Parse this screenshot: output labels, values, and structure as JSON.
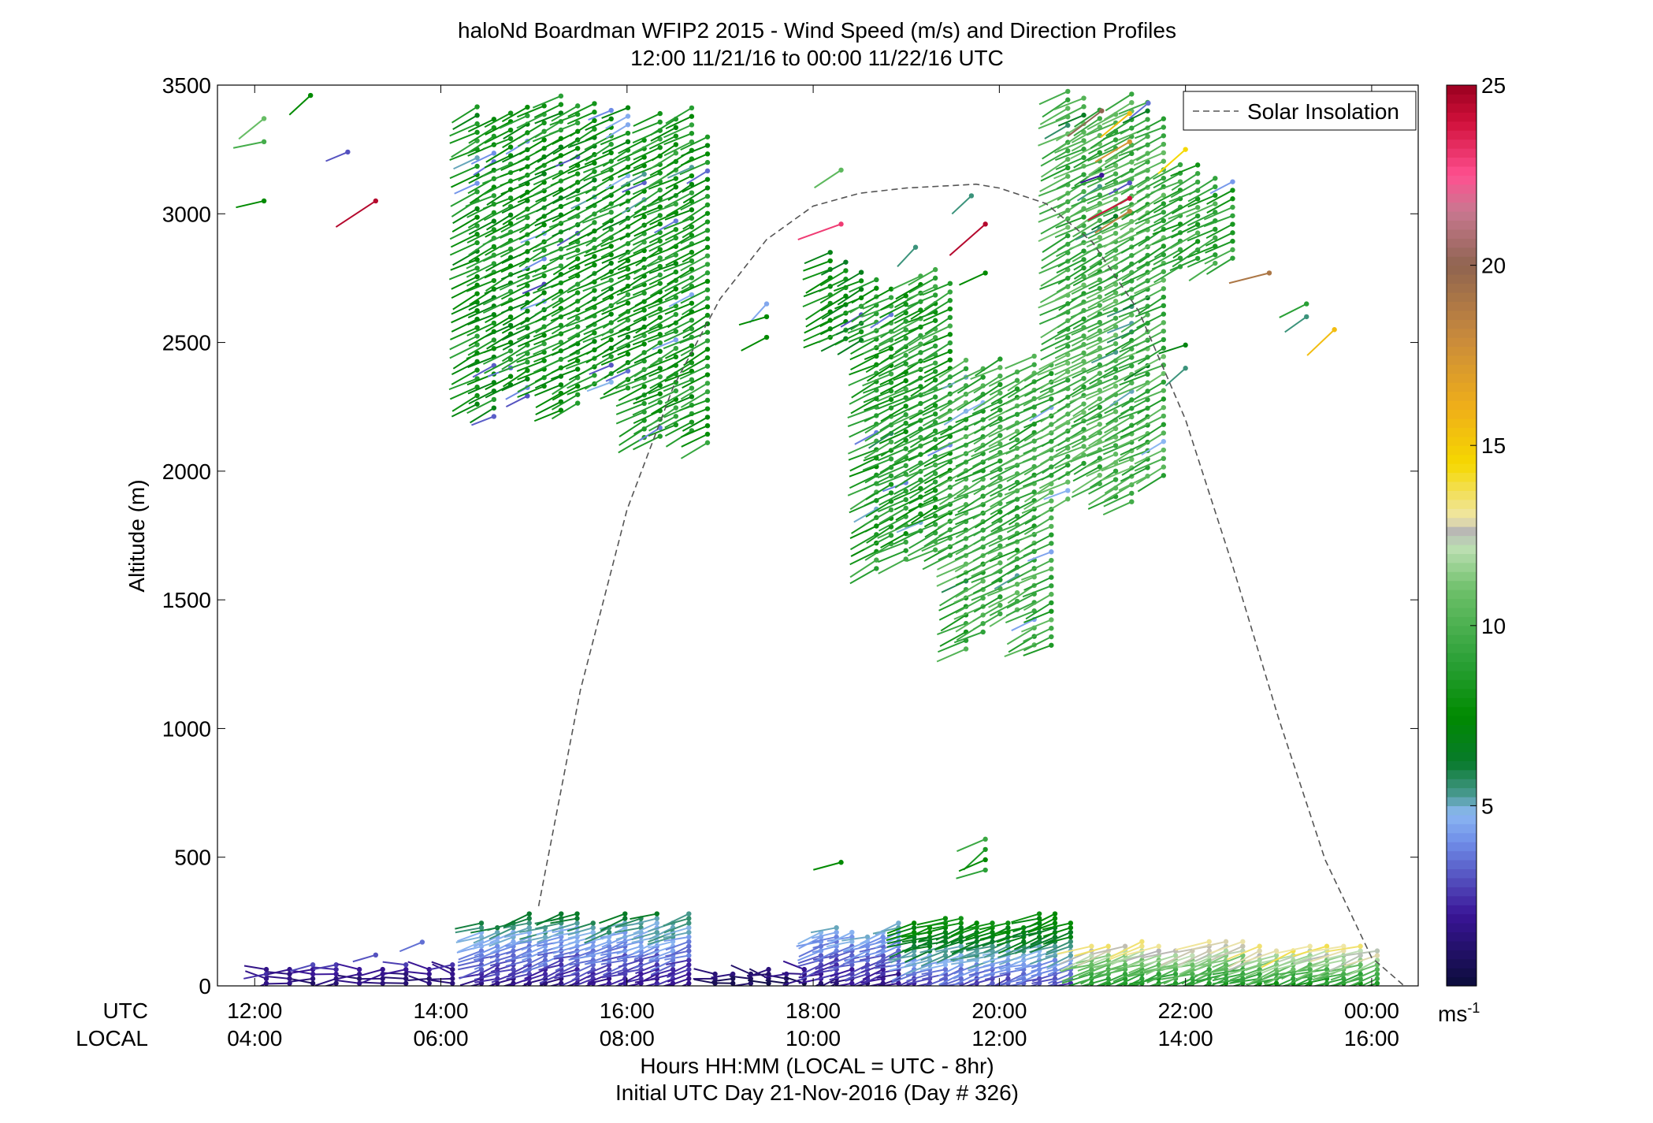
{
  "chart_data": {
    "type": "scatter",
    "title": "haloNd Boardman WFIP2 2015 - Wind Speed (m/s) and Direction Profiles",
    "subtitle": "12:00 11/21/16 to 00:00 11/22/16  UTC",
    "ylabel": "Altitude (m)",
    "xlabel": "Hours HH:MM  (LOCAL = UTC - 8hr)",
    "xlabel2": "Initial UTC Day 21-Nov-2016 (Day # 326)",
    "x_row_labels": [
      "UTC",
      "LOCAL"
    ],
    "x_ticks_utc": [
      "12:00",
      "14:00",
      "16:00",
      "18:00",
      "20:00",
      "22:00",
      "00:00"
    ],
    "x_ticks_local": [
      "04:00",
      "06:00",
      "08:00",
      "10:00",
      "12:00",
      "14:00",
      "16:00"
    ],
    "x_tick_hours": [
      12,
      14,
      16,
      18,
      20,
      22,
      24
    ],
    "xlim": [
      11.6,
      24.5
    ],
    "y_ticks": [
      0,
      500,
      1000,
      1500,
      2000,
      2500,
      3000,
      3500
    ],
    "ylim": [
      0,
      3500
    ],
    "legend": {
      "entry": "Solar Insolation",
      "placement": "top-right",
      "line_style": "dashed"
    },
    "colorbar": {
      "ticks": [
        5,
        10,
        15,
        20,
        25
      ],
      "range": [
        0,
        25
      ],
      "unit_label": "ms",
      "unit_exponent": "-1",
      "colormap": [
        [
          0,
          "#0b0c3a"
        ],
        [
          2,
          "#3a1597"
        ],
        [
          4,
          "#6f8ee8"
        ],
        [
          4.8,
          "#8db8f2"
        ],
        [
          5.3,
          "#4a9a92"
        ],
        [
          6.2,
          "#087a2c"
        ],
        [
          7.5,
          "#008a00"
        ],
        [
          9,
          "#2aa036"
        ],
        [
          11,
          "#6ec06a"
        ],
        [
          12.2,
          "#bfe0b5"
        ],
        [
          12.6,
          "#b5b5b5"
        ],
        [
          13,
          "#efe6a8"
        ],
        [
          14.5,
          "#f5d800"
        ],
        [
          16,
          "#f0b018"
        ],
        [
          18,
          "#c98a3c"
        ],
        [
          20,
          "#8f6450"
        ],
        [
          21.5,
          "#c87890"
        ],
        [
          22.5,
          "#ff5090"
        ],
        [
          24,
          "#d0103a"
        ],
        [
          25,
          "#9a0020"
        ]
      ]
    },
    "solar_insolation_curve": {
      "x_hours": [
        15.05,
        15.5,
        16,
        16.5,
        17,
        17.5,
        18,
        18.5,
        19,
        19.5,
        19.75,
        20,
        20.5,
        21,
        21.5,
        22,
        22.5,
        23,
        23.5,
        24,
        24.35
      ],
      "altitude_equivalent": [
        310,
        1150,
        1850,
        2330,
        2670,
        2900,
        3030,
        3080,
        3100,
        3110,
        3115,
        3100,
        3040,
        2890,
        2620,
        2200,
        1640,
        1040,
        490,
        110,
        0
      ]
    },
    "low_level_blocks": [
      {
        "x_start": 12.0,
        "x_end": 14.25,
        "top": 90,
        "speed_low": 1.0,
        "speed_high": 2.5,
        "cols": 9
      },
      {
        "x_start": 14.35,
        "x_end": 16.75,
        "top": 300,
        "speed_low": 1.5,
        "speed_high": 6.0,
        "cols": 14
      },
      {
        "x_start": 16.85,
        "x_end": 18.0,
        "top": 70,
        "speed_low": 0.8,
        "speed_high": 1.5,
        "cols": 6
      },
      {
        "x_start": 18.0,
        "x_end": 19.0,
        "top": 250,
        "speed_low": 1.5,
        "speed_high": 5.0,
        "cols": 6
      },
      {
        "x_start": 19.0,
        "x_end": 20.85,
        "top": 300,
        "speed_low": 2.5,
        "speed_high": 8.0,
        "cols": 11
      },
      {
        "x_start": 20.9,
        "x_end": 24.15,
        "top": 190,
        "speed_low": 8.0,
        "speed_high": 13.5,
        "cols": 18
      }
    ],
    "upper_level_blocks": [
      {
        "x_start": 14.3,
        "x_end": 16.1,
        "y_low": 2170,
        "y_high": 3490,
        "speed": 8.0,
        "cols": 10
      },
      {
        "x_start": 16.1,
        "x_end": 16.95,
        "y_low": 2080,
        "y_high": 3430,
        "speed": 8.3,
        "cols": 5
      },
      {
        "x_start": 18.1,
        "x_end": 18.6,
        "y_low": 2500,
        "y_high": 2910,
        "speed": 7.6,
        "cols": 3
      },
      {
        "x_start": 18.6,
        "x_end": 19.55,
        "y_low": 1600,
        "y_high": 2800,
        "speed": 8.6,
        "cols": 6
      },
      {
        "x_start": 19.55,
        "x_end": 20.65,
        "y_low": 1300,
        "y_high": 2500,
        "speed": 9.5,
        "cols": 6
      },
      {
        "x_start": 20.65,
        "x_end": 21.85,
        "y_low": 1800,
        "y_high": 3490,
        "speed": 9.8,
        "cols": 7
      },
      {
        "x_start": 21.85,
        "x_end": 22.6,
        "y_low": 2790,
        "y_high": 3260,
        "speed": 9.2,
        "cols": 4
      }
    ],
    "isolated_points": [
      {
        "x": 12.1,
        "y": 3370,
        "speed": 10.8
      },
      {
        "x": 12.1,
        "y": 3280,
        "speed": 9.8
      },
      {
        "x": 12.1,
        "y": 3050,
        "speed": 7.5
      },
      {
        "x": 12.6,
        "y": 3460,
        "speed": 7.5
      },
      {
        "x": 13.0,
        "y": 3240,
        "speed": 3.0
      },
      {
        "x": 13.3,
        "y": 3050,
        "speed": 24.5
      },
      {
        "x": 13.3,
        "y": 120,
        "speed": 3.0
      },
      {
        "x": 13.8,
        "y": 170,
        "speed": 3.5
      },
      {
        "x": 17.5,
        "y": 2650,
        "speed": 4.5
      },
      {
        "x": 17.5,
        "y": 2600,
        "speed": 7.5
      },
      {
        "x": 17.5,
        "y": 2520,
        "speed": 7.5
      },
      {
        "x": 18.3,
        "y": 3170,
        "speed": 10.5
      },
      {
        "x": 18.3,
        "y": 2960,
        "speed": 23.0
      },
      {
        "x": 18.3,
        "y": 480,
        "speed": 7.5
      },
      {
        "x": 19.1,
        "y": 2870,
        "speed": 5.5
      },
      {
        "x": 19.7,
        "y": 3070,
        "speed": 5.5
      },
      {
        "x": 19.85,
        "y": 2960,
        "speed": 24.5
      },
      {
        "x": 19.85,
        "y": 2770,
        "speed": 7.5
      },
      {
        "x": 19.85,
        "y": 570,
        "speed": 9.5
      },
      {
        "x": 19.85,
        "y": 530,
        "speed": 8.5
      },
      {
        "x": 19.85,
        "y": 490,
        "speed": 7.5
      },
      {
        "x": 19.85,
        "y": 450,
        "speed": 9.0
      },
      {
        "x": 21.1,
        "y": 3400,
        "speed": 20.0
      },
      {
        "x": 21.1,
        "y": 3150,
        "speed": 2.0
      },
      {
        "x": 21.6,
        "y": 3430,
        "speed": 3.5
      },
      {
        "x": 21.4,
        "y": 3390,
        "speed": 15.5
      },
      {
        "x": 21.4,
        "y": 3280,
        "speed": 17.5
      },
      {
        "x": 21.4,
        "y": 3120,
        "speed": 3.0
      },
      {
        "x": 21.4,
        "y": 3060,
        "speed": 24.0
      },
      {
        "x": 21.4,
        "y": 3010,
        "speed": 18.5
      },
      {
        "x": 22.0,
        "y": 3250,
        "speed": 14.5
      },
      {
        "x": 22.0,
        "y": 2490,
        "speed": 7.0
      },
      {
        "x": 22.0,
        "y": 2400,
        "speed": 5.5
      },
      {
        "x": 22.9,
        "y": 2770,
        "speed": 19.0
      },
      {
        "x": 23.3,
        "y": 2650,
        "speed": 9.0
      },
      {
        "x": 23.3,
        "y": 2600,
        "speed": 5.5
      },
      {
        "x": 23.6,
        "y": 2550,
        "speed": 15.5
      }
    ]
  }
}
